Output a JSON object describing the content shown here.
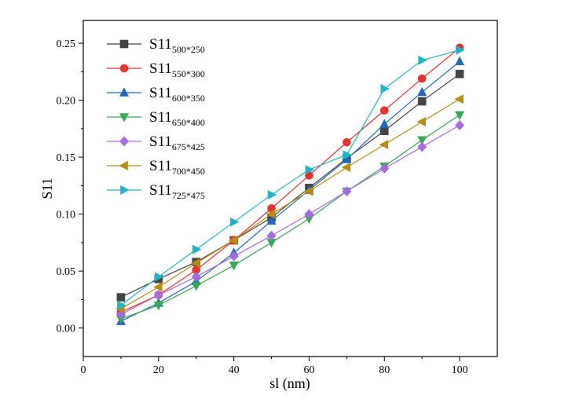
{
  "chart_data": {
    "type": "line",
    "title": "",
    "xlabel": "sl (nm)",
    "ylabel": "S11",
    "xlim": [
      0,
      110
    ],
    "ylim": [
      -0.025,
      0.27
    ],
    "xticks": [
      0,
      20,
      40,
      60,
      80,
      100
    ],
    "xtick_labels": [
      "0",
      "20",
      "40",
      "60",
      "80",
      "100"
    ],
    "yticks": [
      0.0,
      0.05,
      0.1,
      0.15,
      0.2,
      0.25
    ],
    "ytick_labels": [
      "0.00",
      "0.05",
      "0.10",
      "0.15",
      "0.20",
      "0.25"
    ],
    "grid": false,
    "legend_position": "top-left",
    "x": [
      10,
      20,
      30,
      40,
      50,
      60,
      70,
      80,
      90,
      100
    ],
    "series": [
      {
        "name": "S11",
        "subscript": "500*250",
        "color": "#454545",
        "marker": "square",
        "values": [
          0.027,
          0.043,
          0.058,
          0.077,
          0.097,
          0.123,
          0.149,
          0.173,
          0.199,
          0.223
        ]
      },
      {
        "name": "S11",
        "subscript": "550*300",
        "color": "#e8322e",
        "marker": "circle",
        "values": [
          0.014,
          0.029,
          0.051,
          0.077,
          0.105,
          0.134,
          0.163,
          0.191,
          0.219,
          0.246
        ]
      },
      {
        "name": "S11",
        "subscript": "600*350",
        "color": "#1f68c2",
        "marker": "triangle-up",
        "values": [
          0.006,
          0.022,
          0.041,
          0.066,
          0.094,
          0.121,
          0.148,
          0.179,
          0.207,
          0.234
        ]
      },
      {
        "name": "S11",
        "subscript": "650*400",
        "color": "#35a855",
        "marker": "triangle-down",
        "values": [
          0.008,
          0.02,
          0.037,
          0.055,
          0.075,
          0.096,
          0.12,
          0.142,
          0.165,
          0.187
        ]
      },
      {
        "name": "S11",
        "subscript": "675*425",
        "color": "#a66be0",
        "marker": "diamond",
        "values": [
          0.012,
          0.029,
          0.045,
          0.063,
          0.081,
          0.1,
          0.12,
          0.14,
          0.159,
          0.178
        ]
      },
      {
        "name": "S11",
        "subscript": "700*450",
        "color": "#b98c10",
        "marker": "triangle-left",
        "values": [
          0.017,
          0.036,
          0.057,
          0.077,
          0.1,
          0.12,
          0.141,
          0.161,
          0.181,
          0.201
        ]
      },
      {
        "name": "S11",
        "subscript": "725*475",
        "color": "#1bb7c9",
        "marker": "triangle-right",
        "values": [
          0.02,
          0.045,
          0.069,
          0.093,
          0.117,
          0.139,
          0.152,
          0.21,
          0.235,
          0.244
        ]
      }
    ]
  }
}
